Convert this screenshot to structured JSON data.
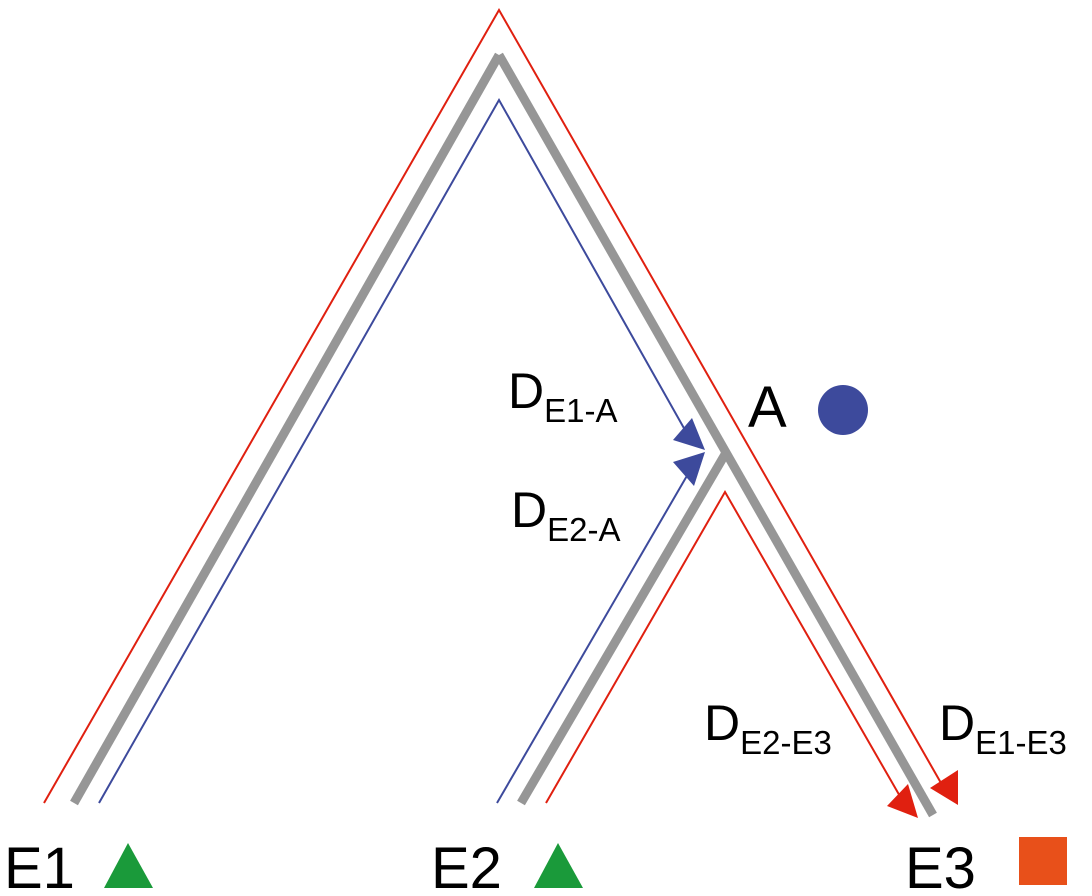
{
  "nodes": {
    "E1": {
      "label": "E1",
      "marker": "triangle",
      "color": "#1a9a3a"
    },
    "E2": {
      "label": "E2",
      "marker": "triangle",
      "color": "#1a9a3a"
    },
    "E3": {
      "label": "E3",
      "marker": "square",
      "color": "#e8501a"
    },
    "A": {
      "label": "A",
      "marker": "circle",
      "color": "#3d4a9c"
    }
  },
  "distances": {
    "e1_a": {
      "main": "D",
      "sub": "E1-A"
    },
    "e2_a": {
      "main": "D",
      "sub": "E2-A"
    },
    "e2_e3": {
      "main": "D",
      "sub": "E2-E3"
    },
    "e1_e3": {
      "main": "D",
      "sub": "E1-E3"
    }
  },
  "colors": {
    "tree": "#969696",
    "path_red": "#e02010",
    "path_blue": "#3d4a9c"
  }
}
